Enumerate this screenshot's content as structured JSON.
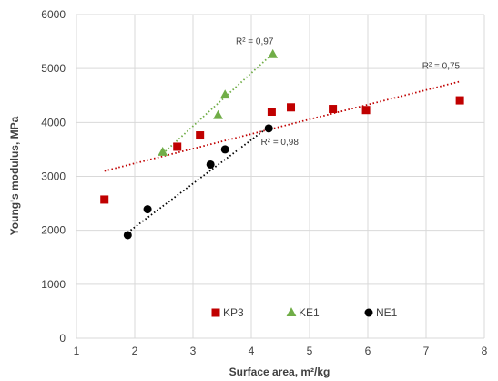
{
  "chart_data": {
    "type": "scatter",
    "xlabel": "Surface area, m²/kg",
    "ylabel": "Young's modulus, MPa",
    "xlim": [
      1,
      8
    ],
    "ylim": [
      0,
      6000
    ],
    "x_ticks": [
      "1",
      "2",
      "3",
      "4",
      "5",
      "6",
      "7",
      "8"
    ],
    "y_ticks": [
      "0",
      "1000",
      "2000",
      "3000",
      "4000",
      "5000",
      "6000"
    ],
    "grid": "vertical and horizontal",
    "legend_position": "bottom-inside",
    "series": [
      {
        "name": "KP3",
        "marker": "square",
        "color": "#c00000",
        "points": [
          [
            1.48,
            2570
          ],
          [
            2.73,
            3550
          ],
          [
            3.12,
            3760
          ],
          [
            4.35,
            4200
          ],
          [
            4.68,
            4280
          ],
          [
            5.4,
            4250
          ],
          [
            5.97,
            4230
          ],
          [
            7.58,
            4410
          ]
        ],
        "trendline": {
          "from": [
            1.48,
            3100
          ],
          "to": [
            7.58,
            4760
          ],
          "label": "R² = 0,75"
        }
      },
      {
        "name": "KE1",
        "marker": "triangle",
        "color": "#70ad47",
        "points": [
          [
            2.48,
            3450
          ],
          [
            3.43,
            4130
          ],
          [
            3.55,
            4510
          ],
          [
            4.37,
            5260
          ]
        ],
        "trendline": {
          "from": [
            2.48,
            3420
          ],
          "to": [
            4.37,
            5280
          ],
          "label": "R² = 0,97"
        }
      },
      {
        "name": "NE1",
        "marker": "circle",
        "color": "#000000",
        "points": [
          [
            1.88,
            1910
          ],
          [
            2.22,
            2390
          ],
          [
            3.3,
            3220
          ],
          [
            3.55,
            3500
          ],
          [
            4.3,
            3890
          ]
        ],
        "trendline": {
          "from": [
            1.88,
            1960
          ],
          "to": [
            4.3,
            3920
          ],
          "label": "R² = 0,98"
        }
      }
    ]
  }
}
